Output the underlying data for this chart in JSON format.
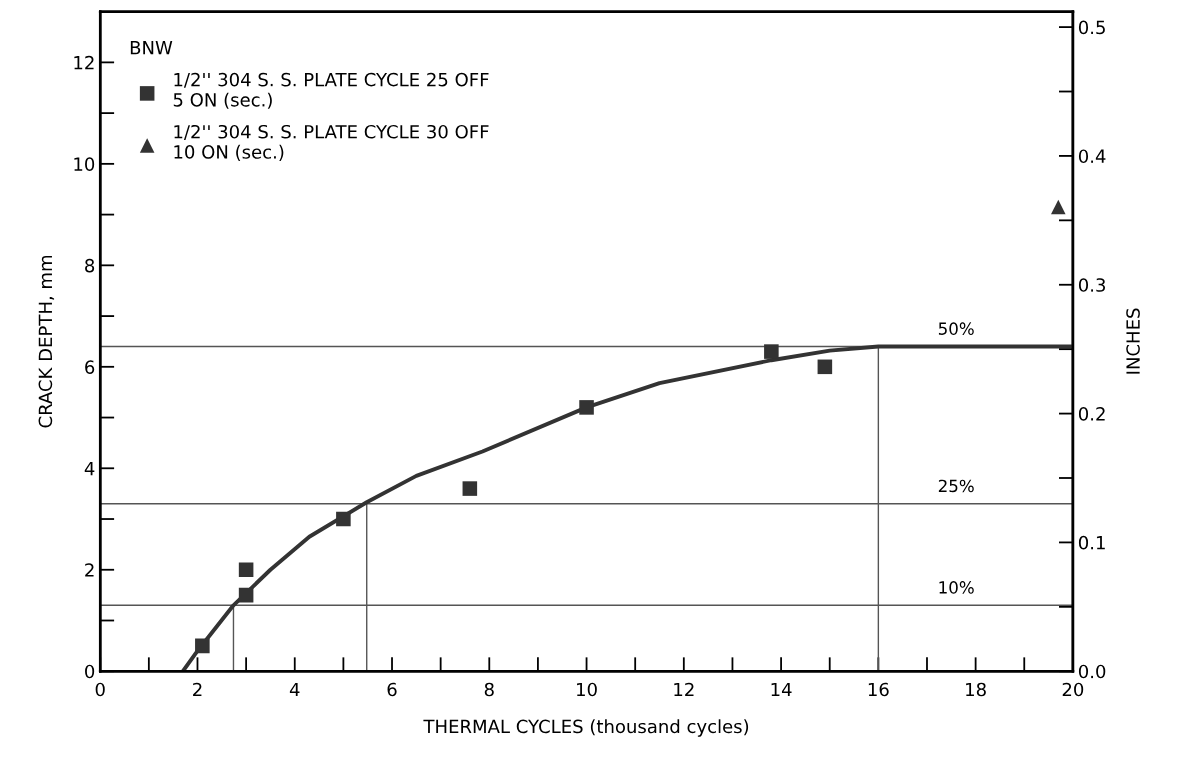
{
  "chart_data": {
    "type": "scatter",
    "xlabel": "THERMAL CYCLES (thousand cycles)",
    "ylabel": "CRACK DEPTH, mm",
    "y2label": "INCHES",
    "legend_title": "BNW",
    "series": [
      {
        "name": "1/2'' 304 S. S. PLATE CYCLE 25 OFF\n5 ON (sec.)",
        "color": "#333333",
        "marker": "square",
        "x": [
          2.1,
          3.0,
          3.0,
          5.0,
          7.6,
          10.0,
          13.8,
          14.9
        ],
        "values": [
          0.5,
          2.0,
          1.5,
          3.0,
          3.6,
          5.2,
          6.3,
          6.0
        ]
      },
      {
        "name": "1/2'' 304 S. S. PLATE CYCLE 30 OFF\n10 ON (sec.)",
        "color": "#333333",
        "marker": "triangle",
        "x": [
          19.7
        ],
        "values": [
          9.15
        ]
      },
      {
        "type": "line",
        "color": "#333333",
        "line_style": "solid",
        "x": [
          1.7,
          2.0,
          2.74,
          3.5,
          4.3,
          5.48,
          6.5,
          7.86,
          10.0,
          11.5,
          13.8,
          15.0,
          16.0,
          20.0
        ],
        "values": [
          0.0,
          0.4,
          1.3,
          2.0,
          2.65,
          3.33,
          3.85,
          4.33,
          5.2,
          5.68,
          6.13,
          6.32,
          6.4,
          6.4
        ]
      },
      {
        "type": "step",
        "color": "#555555",
        "line_style": "solid",
        "x": [
          2.74,
          2.74
        ],
        "values": [
          0,
          1.3
        ]
      },
      {
        "type": "step",
        "color": "#555555",
        "line_style": "solid",
        "x": [
          5.48,
          5.48
        ],
        "values": [
          0,
          3.3
        ]
      },
      {
        "type": "step",
        "color": "#555555",
        "line_style": "solid",
        "x": [
          16.0,
          16.0
        ],
        "values": [
          0,
          6.4
        ]
      }
    ],
    "ref_lines": [
      {
        "axis": "y",
        "value": 1.3,
        "color": "#555555"
      },
      {
        "axis": "y",
        "value": 3.3,
        "color": "#555555"
      },
      {
        "axis": "y",
        "value": 6.4,
        "color": "#555555"
      }
    ],
    "annotations": [
      {
        "text": "10%",
        "y": 1.3
      },
      {
        "text": "25%",
        "y": 3.3
      },
      {
        "text": "50%",
        "y": 6.4
      }
    ],
    "xlim": [
      0,
      20
    ],
    "ylim": [
      0,
      13
    ],
    "y2lim": [
      0,
      0.512
    ],
    "xticks": [
      0,
      {
        "value": 1,
        "label": null
      },
      2,
      {
        "value": 3,
        "label": null
      },
      4,
      {
        "value": 5,
        "label": null
      },
      6,
      {
        "value": 7,
        "label": null
      },
      8,
      {
        "value": 9,
        "label": null
      },
      10,
      {
        "value": 11,
        "label": null
      },
      12,
      {
        "value": 13,
        "label": null
      },
      14,
      {
        "value": 15,
        "label": null
      },
      16,
      {
        "value": 17,
        "label": null
      },
      18,
      {
        "value": 19,
        "label": null
      },
      20
    ],
    "yticks": [
      0,
      {
        "value": 1,
        "label": null
      },
      2,
      {
        "value": 3,
        "label": null
      },
      4,
      {
        "value": 5,
        "label": null
      },
      6,
      {
        "value": 7,
        "label": null
      },
      8,
      {
        "value": 9,
        "label": null
      },
      10,
      {
        "value": 11,
        "label": null
      },
      12
    ],
    "y2ticks": [
      {
        "value": 0,
        "label": "0.0"
      },
      {
        "value": 0.05,
        "label": null
      },
      {
        "value": 0.1,
        "label": "0.1"
      },
      {
        "value": 0.15,
        "label": null
      },
      {
        "value": 0.2,
        "label": "0.2"
      },
      {
        "value": 0.25,
        "label": null
      },
      {
        "value": 0.3,
        "label": "0.3"
      },
      {
        "value": 0.35,
        "label": null
      },
      {
        "value": 0.4,
        "label": "0.4"
      },
      {
        "value": 0.45,
        "label": null
      },
      {
        "value": 0.5,
        "label": "0.5"
      }
    ],
    "grid": false,
    "legend": "top left"
  }
}
